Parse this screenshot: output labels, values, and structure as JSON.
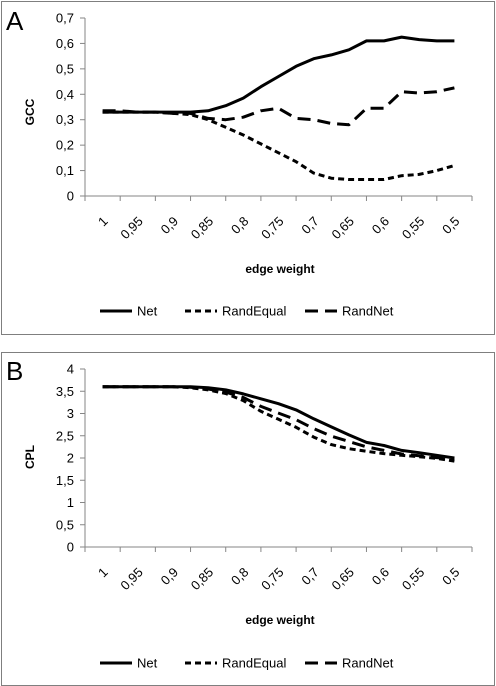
{
  "chart_data": [
    {
      "type": "line",
      "panel_label": "A",
      "title": "",
      "xlabel": "edge weight",
      "ylabel": "GCC",
      "ylim": [
        0,
        0.7
      ],
      "y_ticks": [
        "0",
        "0,1",
        "0,2",
        "0,3",
        "0,4",
        "0,5",
        "0,6",
        "0,7"
      ],
      "y_tick_values": [
        0,
        0.1,
        0.2,
        0.3,
        0.4,
        0.5,
        0.6,
        0.7
      ],
      "categories": [
        "1",
        "0,95",
        "0,9",
        "0,85",
        "0,8",
        "0,75",
        "0,7",
        "0,65",
        "0,6",
        "0,55",
        "0,5"
      ],
      "x": [
        1.0,
        0.975,
        0.95,
        0.925,
        0.9,
        0.875,
        0.85,
        0.825,
        0.8,
        0.775,
        0.75,
        0.725,
        0.7,
        0.675,
        0.65,
        0.625,
        0.6,
        0.575,
        0.55,
        0.525,
        0.5
      ],
      "grid": false,
      "legend_position": "bottom",
      "series": [
        {
          "name": "Net",
          "dash": "solid",
          "values": [
            0.33,
            0.33,
            0.33,
            0.33,
            0.33,
            0.33,
            0.335,
            0.355,
            0.385,
            0.43,
            0.47,
            0.51,
            0.54,
            0.555,
            0.575,
            0.61,
            0.61,
            0.625,
            0.615,
            0.61,
            0.61
          ]
        },
        {
          "name": "RandEqual",
          "dash": "short",
          "values": [
            0.33,
            0.33,
            0.33,
            0.33,
            0.325,
            0.32,
            0.3,
            0.27,
            0.24,
            0.205,
            0.17,
            0.135,
            0.09,
            0.07,
            0.065,
            0.065,
            0.065,
            0.08,
            0.085,
            0.1,
            0.12
          ]
        },
        {
          "name": "RandNet",
          "dash": "long",
          "values": [
            0.335,
            0.335,
            0.33,
            0.33,
            0.325,
            0.325,
            0.305,
            0.3,
            0.31,
            0.335,
            0.345,
            0.305,
            0.3,
            0.285,
            0.28,
            0.345,
            0.345,
            0.41,
            0.405,
            0.41,
            0.425
          ]
        }
      ]
    },
    {
      "type": "line",
      "panel_label": "B",
      "title": "",
      "xlabel": "edge weight",
      "ylabel": "CPL",
      "ylim": [
        0,
        4
      ],
      "y_ticks": [
        "0",
        "0,5",
        "1",
        "1,5",
        "2",
        "2,5",
        "3",
        "3,5",
        "4"
      ],
      "y_tick_values": [
        0,
        0.5,
        1,
        1.5,
        2,
        2.5,
        3,
        3.5,
        4
      ],
      "categories": [
        "1",
        "0,95",
        "0,9",
        "0,85",
        "0,8",
        "0,75",
        "0,7",
        "0,65",
        "0,6",
        "0,55",
        "0,5"
      ],
      "x": [
        1.0,
        0.975,
        0.95,
        0.925,
        0.9,
        0.875,
        0.85,
        0.825,
        0.8,
        0.775,
        0.75,
        0.725,
        0.7,
        0.675,
        0.65,
        0.625,
        0.6,
        0.575,
        0.55,
        0.525,
        0.5
      ],
      "grid": false,
      "legend_position": "bottom",
      "series": [
        {
          "name": "Net",
          "dash": "solid",
          "values": [
            3.6,
            3.6,
            3.6,
            3.6,
            3.6,
            3.6,
            3.58,
            3.53,
            3.44,
            3.33,
            3.22,
            3.08,
            2.88,
            2.7,
            2.52,
            2.35,
            2.28,
            2.17,
            2.12,
            2.06,
            2.0
          ]
        },
        {
          "name": "RandEqual",
          "dash": "short",
          "values": [
            3.6,
            3.6,
            3.6,
            3.6,
            3.6,
            3.58,
            3.53,
            3.45,
            3.29,
            3.05,
            2.87,
            2.69,
            2.47,
            2.3,
            2.21,
            2.15,
            2.1,
            2.06,
            2.03,
            1.99,
            1.93
          ]
        },
        {
          "name": "RandNet",
          "dash": "long",
          "values": [
            3.6,
            3.6,
            3.6,
            3.6,
            3.6,
            3.59,
            3.55,
            3.48,
            3.36,
            3.16,
            3.01,
            2.86,
            2.66,
            2.49,
            2.37,
            2.25,
            2.17,
            2.09,
            2.05,
            2.01,
            1.98
          ]
        }
      ]
    }
  ]
}
